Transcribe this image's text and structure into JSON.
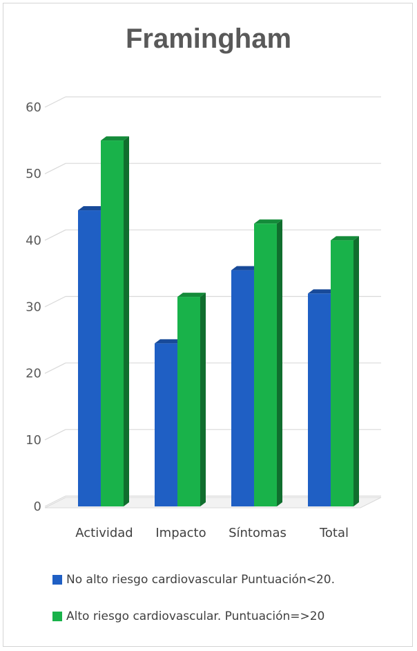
{
  "chart_data": {
    "type": "bar",
    "title": "Framingham",
    "categories": [
      "Actividad",
      "Impacto",
      "Síntomas",
      "Total"
    ],
    "series": [
      {
        "name": "No alto riesgo cardiovascular Puntuación<20.",
        "color": "#1f5fc4",
        "values": [
          44.5,
          24.5,
          35.5,
          32
        ]
      },
      {
        "name": "Alto riesgo cardiovascular. Puntuación=>20",
        "color": "#19b24a",
        "values": [
          55,
          31.5,
          42.5,
          40
        ]
      }
    ],
    "yticks": [
      "0",
      "10",
      "20",
      "30",
      "40",
      "50",
      "60"
    ],
    "ylim": [
      0,
      60
    ],
    "grid": true,
    "legend_position": "bottom",
    "style": "3d-bars"
  }
}
